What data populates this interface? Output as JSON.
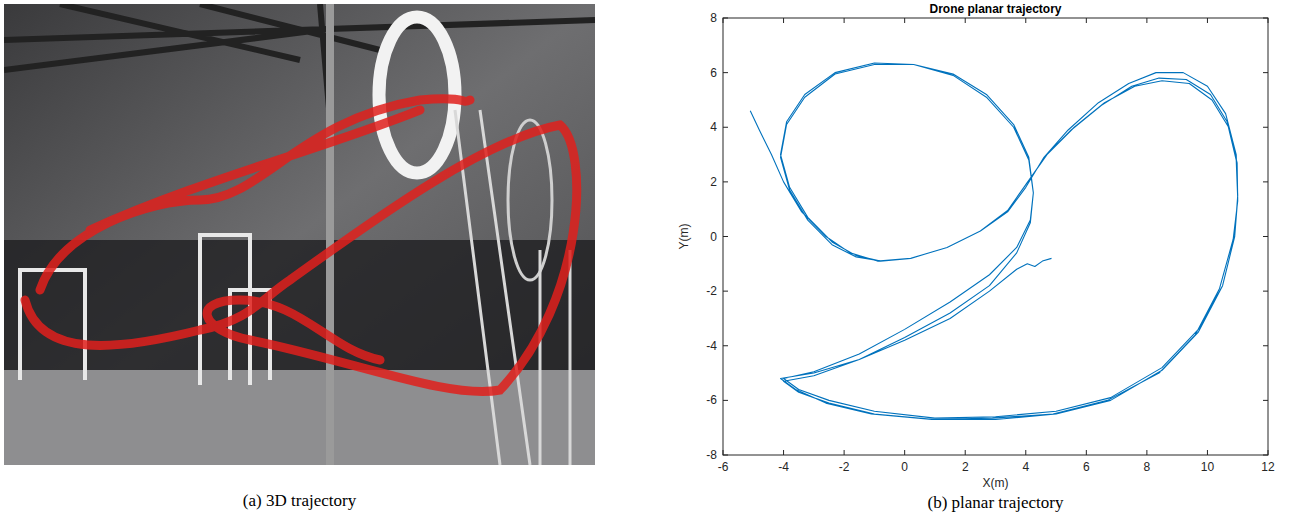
{
  "panels": [
    {
      "caption": "(a) 3D trajectory"
    },
    {
      "caption": "(b) planar trajectory"
    }
  ],
  "chart_data": {
    "type": "line",
    "title": "Drone planar trajectory",
    "x_label": "X(m)",
    "y_label": "Y(m)",
    "color": "#0072bd",
    "grid": false,
    "xlim": [
      -6,
      12
    ],
    "xticks": [
      -6,
      -4,
      -2,
      0,
      2,
      4,
      6,
      8,
      10,
      12
    ],
    "ylim": [
      -8,
      8
    ],
    "yticks": [
      -8,
      -6,
      -4,
      -2,
      0,
      2,
      4,
      6,
      8
    ],
    "x": [
      -5.1,
      -4.8,
      -4.4,
      -4.0,
      -3.4,
      -2.6,
      -1.8,
      -0.9,
      0.2,
      1.4,
      2.5,
      3.4,
      4.0,
      4.6,
      5.4,
      6.4,
      7.4,
      8.3,
      9.2,
      10.0,
      10.6,
      10.95,
      11.0,
      10.9,
      10.5,
      9.7,
      8.5,
      6.8,
      5.0,
      3.0,
      1.0,
      -1.0,
      -2.5,
      -3.5,
      -4.0,
      -3.0,
      -1.5,
      0.0,
      1.5,
      2.8,
      3.7,
      4.15,
      4.25,
      4.1,
      3.6,
      2.7,
      1.6,
      0.3,
      -1.0,
      -2.3,
      -3.3,
      -3.9,
      -4.1,
      -3.8,
      -3.2,
      -2.4,
      -1.6,
      -0.8,
      0.2,
      1.4,
      2.5,
      3.4,
      4.0,
      4.6,
      5.5,
      6.5,
      7.5,
      8.4,
      9.3,
      10.1,
      10.65,
      10.95,
      11.0,
      10.9,
      10.5,
      9.7,
      8.5,
      6.8,
      5.0,
      3.0,
      1.0,
      -1.0,
      -2.5,
      -3.5,
      -4.0,
      -3.0,
      -1.5,
      0.0,
      1.5,
      2.8,
      3.7,
      4.15,
      4.25,
      4.1,
      3.6,
      2.7,
      1.6,
      0.3,
      -1.0,
      -2.3,
      -3.3,
      -3.9,
      -4.1,
      -3.8,
      -3.2,
      -2.4,
      -1.6,
      -0.8,
      0.2,
      1.4,
      2.5,
      3.4,
      4.0,
      4.7,
      5.6,
      6.6,
      7.6,
      8.5,
      9.4,
      10.15,
      10.7,
      10.98,
      11.0,
      10.85,
      10.4,
      9.6,
      8.4,
      6.7,
      4.9,
      2.9,
      0.9,
      -1.1,
      -2.6,
      -3.6,
      -4.1,
      -3.0,
      -1.5,
      0.0,
      1.5,
      2.8,
      3.7,
      4.05,
      4.3,
      4.55,
      4.85
    ],
    "values": [
      4.6,
      3.9,
      3.0,
      2.0,
      0.9,
      0.0,
      -0.6,
      -0.9,
      -0.8,
      -0.4,
      0.2,
      0.9,
      1.8,
      2.9,
      3.9,
      4.9,
      5.6,
      6.0,
      6.0,
      5.5,
      4.5,
      3.0,
      1.5,
      0.0,
      -1.8,
      -3.4,
      -4.8,
      -5.9,
      -6.4,
      -6.6,
      -6.65,
      -6.4,
      -6.0,
      -5.6,
      -5.2,
      -4.95,
      -4.3,
      -3.4,
      -2.4,
      -1.4,
      -0.4,
      0.6,
      1.6,
      2.8,
      4.0,
      5.1,
      5.9,
      6.3,
      6.35,
      6.0,
      5.2,
      4.2,
      3.0,
      1.8,
      0.7,
      -0.2,
      -0.7,
      -0.9,
      -0.8,
      -0.4,
      0.2,
      0.9,
      1.8,
      2.9,
      3.9,
      4.8,
      5.5,
      5.8,
      5.75,
      5.2,
      4.2,
      2.8,
      1.4,
      0.0,
      -1.8,
      -3.5,
      -4.9,
      -6.0,
      -6.5,
      -6.7,
      -6.7,
      -6.5,
      -6.1,
      -5.7,
      -5.3,
      -5.1,
      -4.5,
      -3.7,
      -2.8,
      -1.8,
      -0.6,
      0.5,
      1.6,
      2.9,
      4.1,
      5.2,
      5.95,
      6.3,
      6.3,
      5.95,
      5.1,
      4.1,
      2.9,
      1.7,
      0.6,
      -0.3,
      -0.75,
      -0.9,
      -0.8,
      -0.4,
      0.2,
      0.95,
      1.9,
      3.0,
      4.0,
      4.9,
      5.5,
      5.7,
      5.6,
      5.0,
      4.0,
      2.7,
      1.3,
      -0.1,
      -1.9,
      -3.6,
      -5.0,
      -6.0,
      -6.5,
      -6.65,
      -6.7,
      -6.5,
      -6.1,
      -5.6,
      -5.2,
      -5.0,
      -4.5,
      -3.8,
      -3.0,
      -2.0,
      -1.2,
      -1.0,
      -1.1,
      -0.9,
      -0.8
    ]
  }
}
